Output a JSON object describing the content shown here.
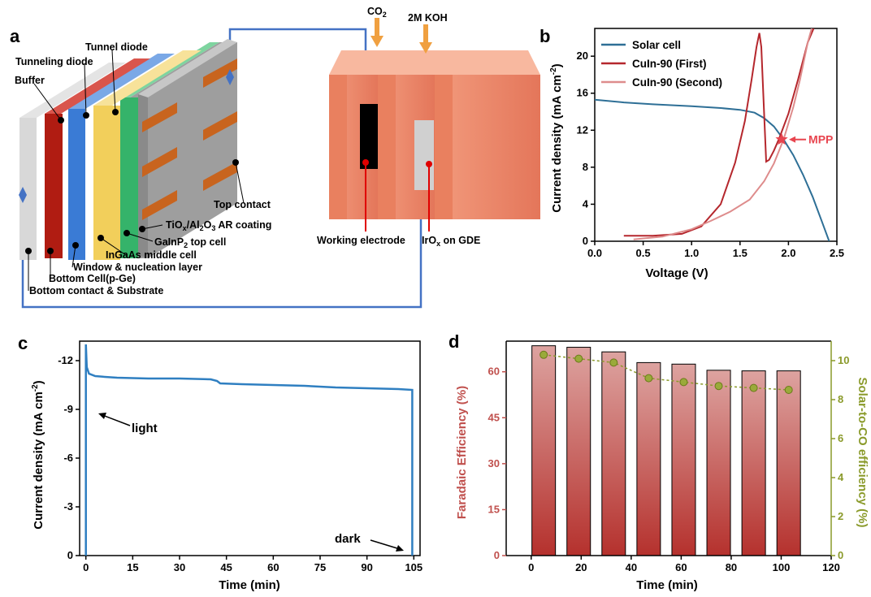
{
  "panel_a": {
    "letter": "a",
    "layers": {
      "tunnel_diode": "Tunnel diode",
      "tunneling_diode": "Tunneling diode",
      "buffer": "Buffer",
      "top_contact": "Top contact",
      "ar_coating": "TiOx/Al2O3 AR coating",
      "top_cell": "GaInP2 top cell",
      "middle_cell": "InGaAs middle cell",
      "window": "Window & nucleation layer",
      "bottom_cell": "Bottom Cell(p-Ge)",
      "bottom_contact": "Bottom contact & Substrate"
    },
    "cell_labels": {
      "co2": "CO2",
      "koh": "2M KOH",
      "working_electrode": "Working electrode",
      "anode": "IrOx on GDE"
    },
    "colors": {
      "wire": "#4472c4",
      "red_layer": "#b01c12",
      "blue_layer": "#3a7bd5",
      "yellow_layer": "#f2cf5b",
      "green_layer": "#35b36a",
      "substrate": "#9e9e9e",
      "contact": "#c8641e",
      "cell_body": "#f08a68"
    }
  },
  "chart_data": [
    {
      "panel": "b",
      "type": "line",
      "xlabel": "Voltage (V)",
      "ylabel": "Current density (mA cm⁻²)",
      "xlim": [
        0,
        2.5
      ],
      "ylim": [
        0,
        23
      ],
      "xticks": [
        "0.0",
        "0.5",
        "1.0",
        "1.5",
        "2.0",
        "2.5"
      ],
      "yticks": [
        "0",
        "4",
        "8",
        "12",
        "16",
        "20"
      ],
      "legend_position": "top-left",
      "annotation": "MPP",
      "mpp": {
        "x": 1.93,
        "y": 11.0
      },
      "series": [
        {
          "name": "Solar cell",
          "color": "#2e6f96",
          "x": [
            0,
            0.3,
            0.6,
            1.0,
            1.3,
            1.5,
            1.65,
            1.75,
            1.85,
            1.95,
            2.05,
            2.15,
            2.25,
            2.35,
            2.42
          ],
          "y": [
            15.3,
            15.0,
            14.8,
            14.6,
            14.4,
            14.2,
            13.9,
            13.3,
            12.4,
            11.0,
            9.3,
            7.2,
            4.8,
            2.0,
            0
          ]
        },
        {
          "name": "CuIn-90 (First)",
          "color": "#b5272d",
          "x": [
            0.3,
            0.6,
            0.9,
            1.1,
            1.3,
            1.45,
            1.55,
            1.62,
            1.67,
            1.7,
            1.72,
            1.75,
            1.77,
            1.8,
            1.85,
            1.9,
            2.0,
            2.1,
            2.2,
            2.26
          ],
          "y": [
            0.6,
            0.6,
            0.8,
            1.6,
            4.0,
            8.5,
            13.0,
            17.5,
            21.0,
            22.5,
            21.0,
            13.5,
            8.6,
            8.8,
            9.8,
            11.0,
            13.8,
            17.5,
            21.5,
            23
          ]
        },
        {
          "name": "CuIn-90 (Second)",
          "color": "#de8c8c",
          "x": [
            0.4,
            0.7,
            1.0,
            1.2,
            1.4,
            1.6,
            1.75,
            1.85,
            1.95,
            2.05,
            2.12,
            2.2,
            2.24
          ],
          "y": [
            0.2,
            0.5,
            1.3,
            2.2,
            3.2,
            4.5,
            6.5,
            8.4,
            11.0,
            14.5,
            17.5,
            21.5,
            23
          ]
        }
      ]
    },
    {
      "panel": "c",
      "type": "line",
      "xlabel": "Time (min)",
      "ylabel": "Current density (mA cm⁻²)",
      "xlim": [
        -2,
        107
      ],
      "ylim": [
        0,
        -13.2
      ],
      "xticks": [
        "0",
        "15",
        "30",
        "45",
        "60",
        "75",
        "90",
        "105"
      ],
      "yticks": [
        "0",
        "-3",
        "-6",
        "-9",
        "-12"
      ],
      "annotations": [
        "light",
        "dark"
      ],
      "series": [
        {
          "name": "",
          "color": "#2f7fc1",
          "x": [
            0,
            0,
            0.3,
            1,
            3,
            6,
            10,
            20,
            30,
            40,
            42,
            43,
            50,
            60,
            70,
            80,
            90,
            100,
            104.5,
            104.5
          ],
          "y": [
            0,
            -13.0,
            -11.6,
            -11.2,
            -11.05,
            -11.0,
            -10.95,
            -10.9,
            -10.9,
            -10.85,
            -10.75,
            -10.6,
            -10.55,
            -10.5,
            -10.45,
            -10.35,
            -10.3,
            -10.25,
            -10.2,
            0
          ]
        }
      ]
    },
    {
      "panel": "d",
      "type": "bar",
      "xlabel": "Time (min)",
      "ylabel": "Faradaic Efficiency (%)",
      "y2label": "Solar-to-CO efficiency (%)",
      "xlim": [
        -10,
        120
      ],
      "ylim": [
        0,
        70
      ],
      "y2lim": [
        0,
        11
      ],
      "xticks": [
        "0",
        "20",
        "40",
        "60",
        "80",
        "100",
        "120"
      ],
      "yticks": [
        "0",
        "15",
        "30",
        "45",
        "60"
      ],
      "y2ticks": [
        "0",
        "2",
        "4",
        "6",
        "8",
        "10"
      ],
      "x": [
        5,
        19,
        33,
        47,
        61,
        75,
        89,
        103
      ],
      "series": [
        {
          "name": "Faradaic Efficiency",
          "color": "#c0504d",
          "values": [
            68.5,
            68.0,
            66.5,
            63.0,
            62.5,
            60.5,
            60.3,
            60.3
          ]
        },
        {
          "name": "Solar-to-CO efficiency",
          "color": "#8a9a2a",
          "values": [
            10.3,
            10.1,
            9.9,
            9.1,
            8.9,
            8.7,
            8.6,
            8.5
          ]
        }
      ]
    }
  ]
}
